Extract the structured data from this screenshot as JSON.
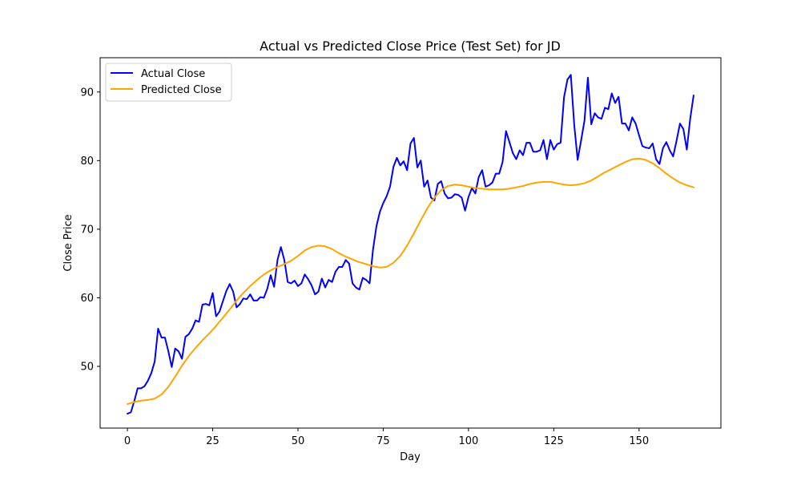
{
  "chart_data": {
    "type": "line",
    "title": "Actual vs Predicted Close Price (Test Set) for JD",
    "xlabel": "Day",
    "ylabel": "Close Price",
    "xlim": [
      -8,
      174
    ],
    "ylim": [
      41,
      95
    ],
    "x_ticks": [
      0,
      25,
      50,
      75,
      100,
      125,
      150
    ],
    "y_ticks": [
      50,
      60,
      70,
      80,
      90
    ],
    "grid": false,
    "legend_position": "upper-left",
    "series": [
      {
        "name": "Actual Close",
        "color": "#0000ff",
        "x": [
          0,
          1,
          2,
          3,
          4,
          5,
          6,
          7,
          8,
          9,
          10,
          11,
          12,
          13,
          14,
          15,
          16,
          17,
          18,
          19,
          20,
          21,
          22,
          23,
          24,
          25,
          26,
          27,
          28,
          29,
          30,
          31,
          32,
          33,
          34,
          35,
          36,
          37,
          38,
          39,
          40,
          41,
          42,
          43,
          44,
          45,
          46,
          47,
          48,
          49,
          50,
          51,
          52,
          53,
          54,
          55,
          56,
          57,
          58,
          59,
          60,
          61,
          62,
          63,
          64,
          65,
          66,
          67,
          68,
          69,
          70,
          71,
          72,
          73,
          74,
          75,
          76,
          77,
          78,
          79,
          80,
          81,
          82,
          83,
          84,
          85,
          86,
          87,
          88,
          89,
          90,
          91,
          92,
          93,
          94,
          95,
          96,
          97,
          98,
          99,
          100,
          101,
          102,
          103,
          104,
          105,
          106,
          107,
          108,
          109,
          110,
          111,
          112,
          113,
          114,
          115,
          116,
          117,
          118,
          119,
          120,
          121,
          122,
          123,
          124,
          125,
          126,
          127,
          128,
          129,
          130,
          131,
          132,
          133,
          134,
          135,
          136,
          137,
          138,
          139,
          140,
          141,
          142,
          143,
          144,
          145,
          146,
          147,
          148,
          149,
          150,
          151,
          152,
          153,
          154,
          155,
          156,
          157,
          158,
          159,
          160,
          161,
          162,
          163,
          164,
          165,
          166
        ],
        "values": [
          43.1,
          43.3,
          44.9,
          46.8,
          46.8,
          47.1,
          47.9,
          49.0,
          50.7,
          55.5,
          54.2,
          54.2,
          52.2,
          49.9,
          52.6,
          52.2,
          51.1,
          54.3,
          54.7,
          55.5,
          56.7,
          56.5,
          59.0,
          59.1,
          58.9,
          60.7,
          57.3,
          58.0,
          59.5,
          61.0,
          62.0,
          60.9,
          58.6,
          59.1,
          59.9,
          59.8,
          60.5,
          59.6,
          59.6,
          60.1,
          60.0,
          61.3,
          63.3,
          61.6,
          65.5,
          67.4,
          65.5,
          62.3,
          62.1,
          62.5,
          61.7,
          62.1,
          63.4,
          62.7,
          61.8,
          60.5,
          60.9,
          62.8,
          61.5,
          62.6,
          62.3,
          63.8,
          64.5,
          64.5,
          65.5,
          65.0,
          62.1,
          61.5,
          61.2,
          62.9,
          62.6,
          62.1,
          67.0,
          70.4,
          72.5,
          73.8,
          74.8,
          76.2,
          79.1,
          80.4,
          79.3,
          79.9,
          78.6,
          82.5,
          83.3,
          79.0,
          80.0,
          76.2,
          77.1,
          74.6,
          74.2,
          76.6,
          77.0,
          75.2,
          74.5,
          74.6,
          75.1,
          75.0,
          74.6,
          72.7,
          74.7,
          76.0,
          75.2,
          77.6,
          78.6,
          76.2,
          76.4,
          76.8,
          78.1,
          78.1,
          79.8,
          84.3,
          82.7,
          81.1,
          80.2,
          81.5,
          80.8,
          82.6,
          82.6,
          81.3,
          81.3,
          81.5,
          83.0,
          80.2,
          83.0,
          81.6,
          82.4,
          82.6,
          89.2,
          91.8,
          92.5,
          85.2,
          80.1,
          82.9,
          85.8,
          92.1,
          85.3,
          86.9,
          86.3,
          86.1,
          87.7,
          87.5,
          89.8,
          88.4,
          89.3,
          85.4,
          85.4,
          84.4,
          86.3,
          85.4,
          83.7,
          82.1,
          81.9,
          81.8,
          82.5,
          80.2,
          79.5,
          81.8,
          82.7,
          81.5,
          80.6,
          82.9,
          85.4,
          84.6,
          81.6,
          86.1,
          89.5
        ]
      },
      {
        "name": "Predicted Close",
        "color": "#ffa500",
        "x": [
          0,
          2,
          4,
          6,
          8,
          10,
          12,
          14,
          16,
          18,
          20,
          22,
          24,
          26,
          28,
          30,
          32,
          34,
          36,
          38,
          40,
          42,
          44,
          46,
          48,
          50,
          52,
          54,
          56,
          58,
          60,
          62,
          64,
          66,
          68,
          70,
          72,
          74,
          76,
          78,
          80,
          82,
          84,
          86,
          88,
          90,
          92,
          94,
          96,
          98,
          100,
          102,
          104,
          106,
          108,
          110,
          112,
          114,
          116,
          118,
          120,
          122,
          124,
          126,
          128,
          130,
          132,
          134,
          136,
          138,
          140,
          142,
          144,
          146,
          148,
          150,
          152,
          154,
          156,
          158,
          160,
          162,
          164,
          166
        ],
        "values": [
          44.5,
          44.8,
          45.0,
          45.1,
          45.3,
          45.9,
          47.0,
          48.5,
          50.1,
          51.5,
          52.7,
          53.8,
          54.8,
          55.9,
          57.1,
          58.3,
          59.6,
          60.7,
          61.7,
          62.6,
          63.4,
          64.0,
          64.5,
          64.9,
          65.4,
          66.1,
          66.9,
          67.4,
          67.6,
          67.5,
          67.1,
          66.5,
          66.0,
          65.6,
          65.2,
          64.9,
          64.6,
          64.4,
          64.5,
          65.1,
          66.1,
          67.6,
          69.4,
          71.3,
          73.1,
          74.6,
          75.7,
          76.3,
          76.5,
          76.4,
          76.2,
          76.0,
          75.9,
          75.8,
          75.8,
          75.8,
          75.9,
          76.1,
          76.3,
          76.6,
          76.8,
          76.9,
          76.9,
          76.7,
          76.5,
          76.4,
          76.5,
          76.7,
          77.1,
          77.7,
          78.3,
          78.8,
          79.3,
          79.8,
          80.2,
          80.3,
          80.1,
          79.6,
          78.9,
          78.1,
          77.4,
          76.8,
          76.4,
          76.1
        ]
      }
    ]
  }
}
